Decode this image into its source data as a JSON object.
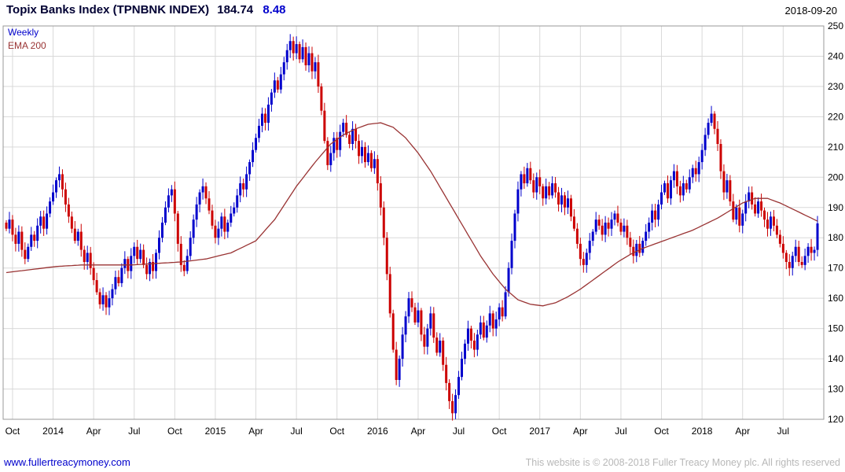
{
  "header": {
    "title": "Topix Banks Index (TPNBNK INDEX)",
    "last_price": "184.74",
    "change": "8.48",
    "date": "2018-09-20"
  },
  "legend": {
    "timeframe": "Weekly",
    "overlay": "EMA 200"
  },
  "footer": {
    "link": "www.fullertreacymoney.com",
    "copyright": "This website is © 2008-2018 Fuller Treacy Money plc. All rights reserved"
  },
  "colors": {
    "up": "#0000cc",
    "down": "#cc0000",
    "ema": "#993333",
    "grid": "#d9d9d9",
    "border": "#999999",
    "axis_text": "#000000"
  },
  "chart_data": {
    "type": "candlestick",
    "title": "Topix Banks Index (TPNBNK INDEX)",
    "timeframe": "Weekly",
    "overlay": "EMA 200",
    "last_close": 184.74,
    "change": 8.48,
    "date": "2018-09-20",
    "ylim": [
      120,
      250
    ],
    "ytick_step": 10,
    "grid": true,
    "x_ticks": [
      {
        "index": 2,
        "label": "Oct"
      },
      {
        "index": 15,
        "label": "2014"
      },
      {
        "index": 28,
        "label": "Apr"
      },
      {
        "index": 41,
        "label": "Jul"
      },
      {
        "index": 54,
        "label": "Oct"
      },
      {
        "index": 67,
        "label": "2015"
      },
      {
        "index": 80,
        "label": "Apr"
      },
      {
        "index": 93,
        "label": "Jul"
      },
      {
        "index": 106,
        "label": "Oct"
      },
      {
        "index": 119,
        "label": "2016"
      },
      {
        "index": 132,
        "label": "Apr"
      },
      {
        "index": 145,
        "label": "Jul"
      },
      {
        "index": 158,
        "label": "Oct"
      },
      {
        "index": 171,
        "label": "2017"
      },
      {
        "index": 184,
        "label": "Apr"
      },
      {
        "index": 197,
        "label": "Jul"
      },
      {
        "index": 210,
        "label": "Oct"
      },
      {
        "index": 223,
        "label": "2018"
      },
      {
        "index": 236,
        "label": "Apr"
      },
      {
        "index": 249,
        "label": "Jul"
      }
    ],
    "closes": [
      183,
      186,
      181,
      178,
      182,
      176,
      173,
      177,
      181,
      179,
      184,
      187,
      183,
      188,
      192,
      195,
      199,
      201,
      196,
      191,
      187,
      183,
      179,
      182,
      176,
      172,
      175,
      170,
      166,
      162,
      158,
      161,
      157,
      160,
      163,
      167,
      165,
      170,
      173,
      169,
      174,
      177,
      173,
      176,
      171,
      168,
      172,
      169,
      175,
      180,
      185,
      190,
      194,
      196,
      188,
      178,
      171,
      169,
      174,
      180,
      186,
      191,
      195,
      197,
      193,
      189,
      184,
      180,
      183,
      187,
      182,
      185,
      188,
      190,
      194,
      198,
      196,
      201,
      205,
      209,
      213,
      217,
      221,
      218,
      224,
      228,
      232,
      229,
      234,
      238,
      242,
      245,
      241,
      244,
      239,
      243,
      237,
      241,
      235,
      238,
      230,
      222,
      212,
      204,
      208,
      213,
      209,
      215,
      218,
      214,
      211,
      216,
      212,
      207,
      210,
      205,
      208,
      203,
      206,
      198,
      190,
      180,
      168,
      155,
      143,
      133,
      140,
      148,
      154,
      160,
      157,
      152,
      156,
      148,
      144,
      150,
      155,
      147,
      142,
      146,
      138,
      132,
      126,
      122,
      128,
      134,
      140,
      145,
      150,
      146,
      143,
      148,
      152,
      147,
      151,
      155,
      150,
      153,
      157,
      154,
      162,
      170,
      179,
      188,
      196,
      201,
      198,
      203,
      199,
      195,
      200,
      197,
      193,
      197,
      194,
      198,
      195,
      191,
      194,
      190,
      193,
      187,
      183,
      178,
      173,
      171,
      175,
      179,
      182,
      186,
      184,
      181,
      185,
      183,
      186,
      188,
      185,
      182,
      184,
      180,
      177,
      174,
      178,
      175,
      179,
      182,
      185,
      189,
      186,
      191,
      195,
      198,
      193,
      199,
      202,
      197,
      194,
      198,
      196,
      200,
      203,
      201,
      205,
      209,
      214,
      218,
      221,
      216,
      211,
      202,
      195,
      199,
      192,
      186,
      190,
      184,
      188,
      192,
      195,
      191,
      188,
      192,
      189,
      186,
      183,
      187,
      184,
      181,
      178,
      175,
      172,
      170,
      174,
      177,
      172,
      171,
      174,
      177,
      175,
      176,
      184.74
    ],
    "ema200_anchors": [
      [
        0,
        168.5
      ],
      [
        8,
        169.5
      ],
      [
        16,
        170.5
      ],
      [
        24,
        171
      ],
      [
        32,
        171
      ],
      [
        40,
        171
      ],
      [
        48,
        171.5
      ],
      [
        56,
        172
      ],
      [
        64,
        173
      ],
      [
        72,
        175
      ],
      [
        80,
        179
      ],
      [
        86,
        186
      ],
      [
        93,
        197
      ],
      [
        99,
        205
      ],
      [
        104,
        211
      ],
      [
        108,
        214
      ],
      [
        112,
        216
      ],
      [
        116,
        217.5
      ],
      [
        120,
        218
      ],
      [
        124,
        216.5
      ],
      [
        128,
        213
      ],
      [
        132,
        208
      ],
      [
        136,
        202
      ],
      [
        140,
        195
      ],
      [
        144,
        188
      ],
      [
        148,
        181
      ],
      [
        152,
        174
      ],
      [
        156,
        168
      ],
      [
        160,
        163
      ],
      [
        164,
        159.5
      ],
      [
        168,
        158
      ],
      [
        172,
        157.5
      ],
      [
        176,
        158.5
      ],
      [
        180,
        160.5
      ],
      [
        184,
        163
      ],
      [
        188,
        166
      ],
      [
        192,
        169
      ],
      [
        196,
        172
      ],
      [
        200,
        174.5
      ],
      [
        204,
        176.5
      ],
      [
        208,
        178
      ],
      [
        212,
        179.5
      ],
      [
        216,
        181
      ],
      [
        220,
        182.5
      ],
      [
        224,
        184.5
      ],
      [
        228,
        186.5
      ],
      [
        232,
        189
      ],
      [
        236,
        191.5
      ],
      [
        240,
        193
      ],
      [
        244,
        193
      ],
      [
        248,
        191.5
      ],
      [
        252,
        189.5
      ],
      [
        256,
        187.5
      ],
      [
        260,
        185.5
      ]
    ]
  }
}
